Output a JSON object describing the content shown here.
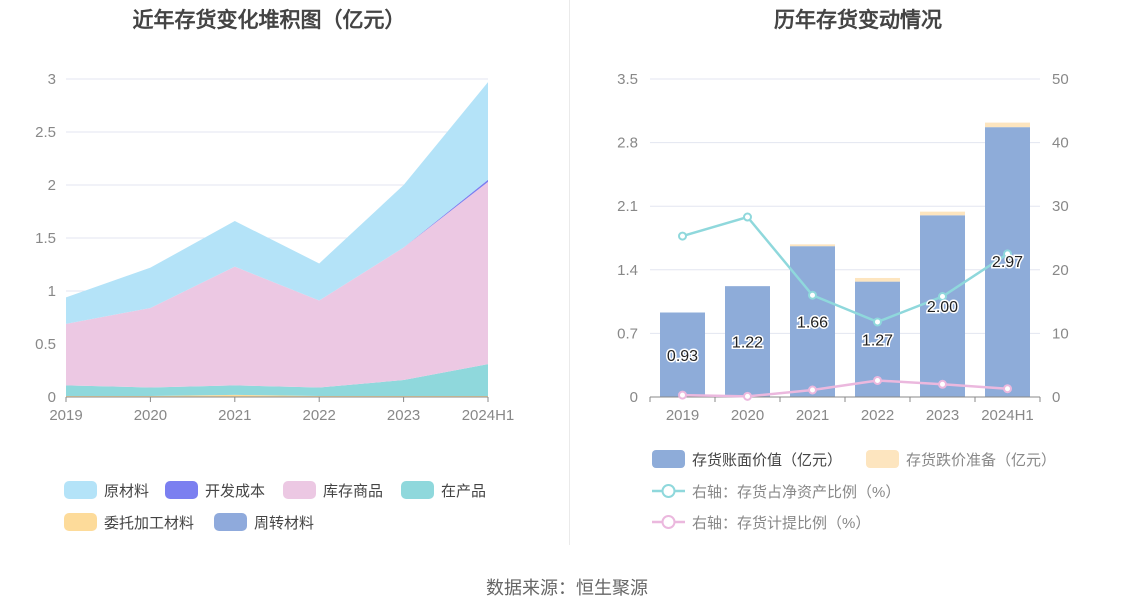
{
  "footer": {
    "source_text": "数据来源：恒生聚源"
  },
  "chart_data": [
    {
      "type": "area",
      "title": "近年存货变化堆积图（亿元）",
      "x": [
        "2019",
        "2020",
        "2021",
        "2022",
        "2023",
        "2024H1"
      ],
      "ylim": [
        0,
        3
      ],
      "yticks": [
        "0",
        "0.5",
        "1",
        "1.5",
        "2",
        "2.5",
        "3"
      ],
      "grid": true,
      "legend_position": "bottom",
      "stacked": true,
      "series": [
        {
          "name": "委托加工材料",
          "color": "#fddb9a",
          "values": [
            0.01,
            0.01,
            0.02,
            0.01,
            0.01,
            0.01
          ]
        },
        {
          "name": "在产品",
          "color": "#8fd8dc",
          "values": [
            0.1,
            0.08,
            0.09,
            0.08,
            0.15,
            0.3
          ]
        },
        {
          "name": "周转材料",
          "color": "#8faadc",
          "values": [
            0.0,
            0.0,
            0.0,
            0.0,
            0.0,
            0.0
          ]
        },
        {
          "name": "库存商品",
          "color": "#ecc8e3",
          "values": [
            0.58,
            0.75,
            1.12,
            0.82,
            1.25,
            1.72
          ]
        },
        {
          "name": "开发成本",
          "color": "#7b7ff0",
          "values": [
            0.0,
            0.0,
            0.0,
            0.0,
            0.0,
            0.02
          ]
        },
        {
          "name": "原材料",
          "color": "#b4e3f8",
          "values": [
            0.25,
            0.38,
            0.43,
            0.35,
            0.59,
            0.92
          ]
        }
      ],
      "legend_order": [
        "原材料",
        "开发成本",
        "库存商品",
        "在产品",
        "委托加工材料",
        "周转材料"
      ]
    },
    {
      "type": "bar",
      "title": "历年存货变动情况",
      "categories": [
        "2019",
        "2020",
        "2021",
        "2022",
        "2023",
        "2024H1"
      ],
      "ylim": [
        0,
        3.5
      ],
      "yticks": [
        "0",
        "0.7",
        "1.4",
        "2.1",
        "2.8",
        "3.5"
      ],
      "y2lim": [
        0,
        50
      ],
      "y2ticks": [
        "0",
        "10",
        "20",
        "30",
        "40",
        "50"
      ],
      "grid": true,
      "legend_position": "bottom",
      "series": [
        {
          "name": "存货账面价值（亿元）",
          "kind": "bar",
          "axis": "left",
          "color": "#8eacd9",
          "values": [
            0.93,
            1.22,
            1.66,
            1.27,
            2.0,
            2.97
          ],
          "labels": [
            "0.93",
            "1.22",
            "1.66",
            "1.27",
            "2.00",
            "2.97"
          ]
        },
        {
          "name": "存货跌价准备（亿元）",
          "kind": "bar",
          "axis": "left",
          "color": "#fde5bf",
          "values": [
            0.0,
            0.0,
            0.02,
            0.04,
            0.04,
            0.05
          ]
        },
        {
          "name": "右轴：存货占净资产比例（%）",
          "kind": "line",
          "axis": "right",
          "color": "#8fd8dc",
          "values": [
            25.3,
            28.3,
            16.0,
            11.8,
            15.8,
            22.5
          ]
        },
        {
          "name": "右轴：存货计提比例（%）",
          "kind": "line",
          "axis": "right",
          "color": "#ebb8de",
          "values": [
            0.3,
            0.1,
            1.1,
            2.6,
            2.0,
            1.3
          ]
        }
      ]
    }
  ]
}
